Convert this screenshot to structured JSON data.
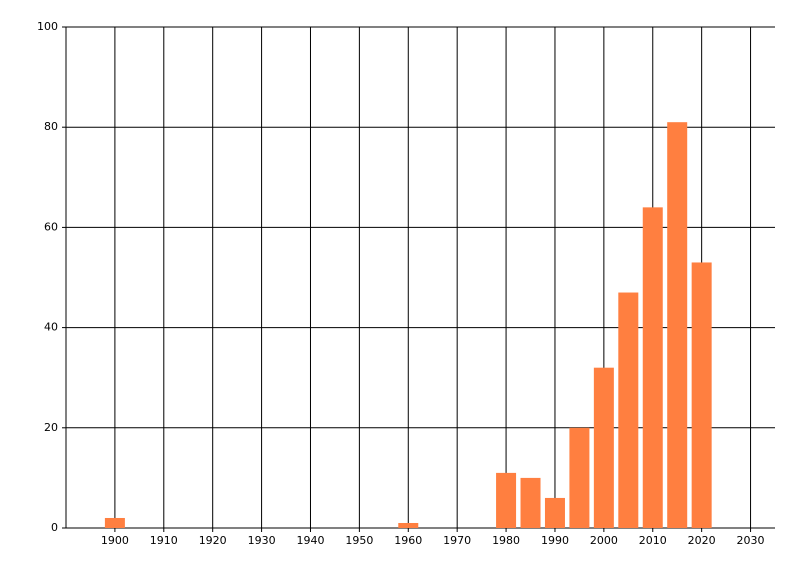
{
  "chart_data": {
    "type": "bar",
    "x": [
      1900,
      1960,
      1980,
      1985,
      1990,
      1995,
      2000,
      2005,
      2010,
      2015,
      2020
    ],
    "values": [
      2,
      1,
      11,
      10,
      6,
      20,
      32,
      47,
      64,
      81,
      53
    ],
    "color": "#ff7f40",
    "xlim": [
      1890,
      2035
    ],
    "xticks": [
      1900,
      1910,
      1920,
      1930,
      1940,
      1950,
      1960,
      1970,
      1980,
      1990,
      2000,
      2010,
      2020,
      2030
    ],
    "ylim": [
      0,
      100
    ],
    "yticks": [
      0,
      20,
      40,
      60,
      80,
      100
    ],
    "grid": true
  }
}
